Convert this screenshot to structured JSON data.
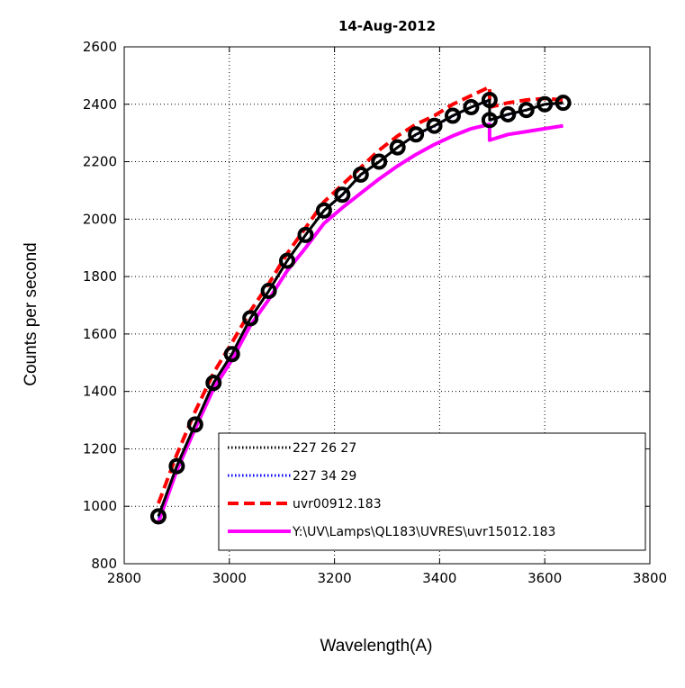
{
  "chart_data": {
    "type": "line",
    "title": "14-Aug-2012",
    "xlabel": "Wavelength(A)",
    "ylabel": "Counts per second",
    "xlim": [
      2800,
      3800
    ],
    "ylim": [
      800,
      2600
    ],
    "xticks": [
      2800,
      3000,
      3200,
      3400,
      3600,
      3800
    ],
    "yticks": [
      800,
      1000,
      1200,
      1400,
      1600,
      1800,
      2000,
      2200,
      2400,
      2600
    ],
    "grid": true,
    "legend_position": "bottom-right",
    "series": [
      {
        "name": "227   26   27",
        "color": "#000000",
        "style": "dotted",
        "x": [
          2865,
          2900,
          2935,
          2970,
          3005,
          3040,
          3075,
          3110,
          3145,
          3180,
          3215,
          3250,
          3285,
          3320,
          3355,
          3390,
          3425,
          3460,
          3495,
          3495,
          3530,
          3565,
          3600,
          3635
        ],
        "y": [
          965,
          1140,
          1285,
          1430,
          1530,
          1655,
          1750,
          1855,
          1945,
          2030,
          2085,
          2155,
          2200,
          2250,
          2295,
          2325,
          2360,
          2390,
          2415,
          2345,
          2365,
          2380,
          2400,
          2405
        ]
      },
      {
        "name": "227   34   29",
        "color": "#0000ff",
        "style": "dotted",
        "x": [
          2865,
          2900,
          2935,
          2970,
          3005,
          3040,
          3075,
          3110,
          3145,
          3180,
          3215,
          3250,
          3285,
          3320,
          3355,
          3390,
          3425,
          3460,
          3495,
          3495,
          3530,
          3565,
          3600,
          3635
        ],
        "y": [
          960,
          1138,
          1283,
          1428,
          1528,
          1652,
          1748,
          1853,
          1943,
          2028,
          2082,
          2152,
          2198,
          2248,
          2292,
          2322,
          2357,
          2388,
          2412,
          2342,
          2362,
          2378,
          2398,
          2402
        ]
      },
      {
        "name": "uvr00912.183",
        "color": "#ff0000",
        "style": "dashed",
        "x": [
          2865,
          2900,
          2935,
          2970,
          3005,
          3040,
          3075,
          3110,
          3145,
          3180,
          3215,
          3250,
          3285,
          3320,
          3355,
          3390,
          3425,
          3460,
          3495,
          3495,
          3530,
          3565,
          3600,
          3635
        ],
        "y": [
          1010,
          1180,
          1330,
          1465,
          1570,
          1680,
          1775,
          1880,
          1970,
          2060,
          2120,
          2180,
          2240,
          2290,
          2330,
          2360,
          2400,
          2430,
          2460,
          2390,
          2405,
          2415,
          2420,
          2415
        ]
      },
      {
        "name": "Y:\\UV\\Lamps\\QL183\\UVRES\\uvr15012.183",
        "color": "#ff00ff",
        "style": "solid",
        "x": [
          2865,
          2900,
          2935,
          2970,
          3005,
          3040,
          3075,
          3110,
          3145,
          3180,
          3215,
          3250,
          3285,
          3320,
          3355,
          3390,
          3425,
          3460,
          3495,
          3495,
          3530,
          3565,
          3600,
          3635
        ],
        "y": [
          945,
          1125,
          1270,
          1410,
          1510,
          1630,
          1720,
          1820,
          1900,
          1985,
          2040,
          2090,
          2140,
          2185,
          2225,
          2260,
          2290,
          2315,
          2330,
          2275,
          2295,
          2305,
          2315,
          2325
        ]
      }
    ],
    "markers": {
      "series_index": 0,
      "shape": "circle",
      "color": "#000000"
    }
  }
}
